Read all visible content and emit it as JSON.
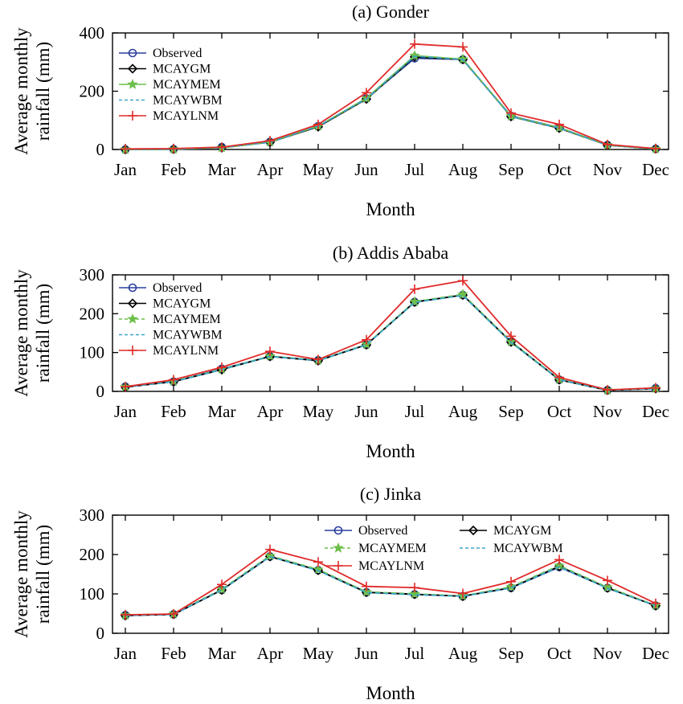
{
  "chart_data": [
    {
      "type": "line",
      "title": "(a)  Gonder",
      "xlabel": "Month",
      "ylabel": [
        "Average monthly",
        "rainfall (mm)"
      ],
      "ylim": [
        0,
        400
      ],
      "yticks": [
        0,
        200,
        400
      ],
      "categories": [
        "Jan",
        "Feb",
        "Mar",
        "Apr",
        "May",
        "Jun",
        "Jul",
        "Aug",
        "Sep",
        "Oct",
        "Nov",
        "Dec"
      ],
      "legend_layout": "column-top-left",
      "series": [
        {
          "name": "Observed",
          "marker": "circle",
          "color": "#2a3f9d",
          "dash": "",
          "values": [
            0,
            1,
            8,
            26,
            80,
            175,
            313,
            309,
            115,
            75,
            15,
            2
          ]
        },
        {
          "name": "MCAYGM",
          "marker": "diamond",
          "color": "#000000",
          "dash": "",
          "values": [
            0,
            1,
            6,
            25,
            78,
            173,
            318,
            309,
            113,
            73,
            15,
            2
          ]
        },
        {
          "name": "MCAYMEM",
          "marker": "star",
          "color": "#6cbf4a",
          "dash": "",
          "values": [
            0,
            1,
            6,
            26,
            80,
            176,
            322,
            310,
            114,
            75,
            15,
            2
          ]
        },
        {
          "name": "MCAYWBM",
          "marker": "none",
          "color": "#3aa6c8",
          "dash": "6,4",
          "values": [
            0,
            1,
            6,
            25,
            80,
            174,
            320,
            309,
            113,
            74,
            15,
            2
          ]
        },
        {
          "name": "MCAYLNM",
          "marker": "plus",
          "color": "#e02a2a",
          "dash": "",
          "values": [
            2,
            3,
            8,
            30,
            86,
            195,
            362,
            352,
            125,
            86,
            17,
            3
          ]
        }
      ]
    },
    {
      "type": "line",
      "title": "(b)  Addis Ababa",
      "xlabel": "Month",
      "ylabel": [
        "Average monthly",
        "rainfall (mm)"
      ],
      "ylim": [
        0,
        300
      ],
      "yticks": [
        0,
        100,
        200,
        300
      ],
      "categories": [
        "Jan",
        "Feb",
        "Mar",
        "Apr",
        "May",
        "Jun",
        "Jul",
        "Aug",
        "Sep",
        "Oct",
        "Nov",
        "Dec"
      ],
      "legend_layout": "column-top-left",
      "series": [
        {
          "name": "Observed",
          "marker": "circle",
          "color": "#2a3f9d",
          "dash": "",
          "values": [
            12,
            25,
            58,
            90,
            80,
            120,
            230,
            248,
            128,
            30,
            3,
            8
          ]
        },
        {
          "name": "MCAYGM",
          "marker": "diamond",
          "color": "#000000",
          "dash": "",
          "values": [
            11,
            25,
            56,
            90,
            79,
            120,
            230,
            248,
            127,
            30,
            3,
            7
          ]
        },
        {
          "name": "MCAYMEM",
          "marker": "star",
          "color": "#6cbf4a",
          "dash": "6,4",
          "values": [
            12,
            26,
            57,
            91,
            80,
            121,
            231,
            250,
            128,
            31,
            3,
            8
          ]
        },
        {
          "name": "MCAYWBM",
          "marker": "none",
          "color": "#3aa6c8",
          "dash": "6,4",
          "values": [
            11,
            25,
            56,
            90,
            79,
            120,
            229,
            247,
            126,
            30,
            3,
            7
          ]
        },
        {
          "name": "MCAYLNM",
          "marker": "plus",
          "color": "#e02a2a",
          "dash": "",
          "values": [
            12,
            30,
            62,
            103,
            82,
            133,
            263,
            285,
            142,
            36,
            4,
            9
          ]
        }
      ]
    },
    {
      "type": "line",
      "title": "(c)  Jinka",
      "xlabel": "Month",
      "ylabel": [
        "Average monthly",
        "rainfall (mm)"
      ],
      "ylim": [
        0,
        300
      ],
      "yticks": [
        0,
        100,
        200,
        300
      ],
      "categories": [
        "Jan",
        "Feb",
        "Mar",
        "Apr",
        "May",
        "Jun",
        "Jul",
        "Aug",
        "Sep",
        "Oct",
        "Nov",
        "Dec"
      ],
      "legend_layout": "two-column-top-right",
      "series": [
        {
          "name": "Observed",
          "marker": "circle",
          "color": "#2a3f9d",
          "dash": "",
          "values": [
            46,
            48,
            110,
            195,
            160,
            104,
            99,
            94,
            115,
            168,
            115,
            70
          ]
        },
        {
          "name": "MCAYGM",
          "marker": "diamond",
          "color": "#000000",
          "dash": "",
          "values": [
            45,
            48,
            110,
            195,
            160,
            104,
            99,
            94,
            116,
            170,
            115,
            70
          ]
        },
        {
          "name": "MCAYMEM",
          "marker": "star",
          "color": "#6cbf4a",
          "dash": "6,4",
          "values": [
            46,
            49,
            112,
            197,
            162,
            105,
            100,
            95,
            118,
            172,
            117,
            71
          ]
        },
        {
          "name": "MCAYWBM",
          "marker": "none",
          "color": "#3aa6c8",
          "dash": "6,4",
          "values": [
            45,
            48,
            110,
            195,
            159,
            103,
            98,
            94,
            115,
            169,
            114,
            70
          ]
        },
        {
          "name": "MCAYLNM",
          "marker": "plus",
          "color": "#e02a2a",
          "dash": "",
          "values": [
            47,
            49,
            124,
            213,
            181,
            119,
            116,
            101,
            131,
            187,
            134,
            76
          ]
        }
      ]
    }
  ]
}
